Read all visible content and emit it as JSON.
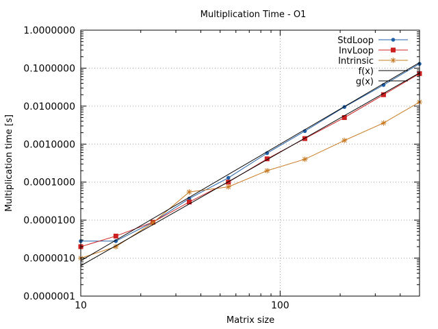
{
  "chart_data": {
    "type": "line",
    "title": "Multiplication Time - O1",
    "xlabel": "Matrix size",
    "ylabel": "Multiplication time [s]",
    "xscale": "log",
    "yscale": "log",
    "xlim": [
      10,
      500
    ],
    "ylim": [
      1e-07,
      1
    ],
    "x_ticks": [
      {
        "value": 10,
        "label": "10"
      },
      {
        "value": 100,
        "label": "100"
      }
    ],
    "y_ticks": [
      {
        "value": 1e-07,
        "label": "0.0000001"
      },
      {
        "value": 1e-06,
        "label": "0.0000010"
      },
      {
        "value": 1e-05,
        "label": "0.0000100"
      },
      {
        "value": 0.0001,
        "label": "0.0001000"
      },
      {
        "value": 0.001,
        "label": "0.0010000"
      },
      {
        "value": 0.01,
        "label": "0.0100000"
      },
      {
        "value": 0.1,
        "label": "0.1000000"
      },
      {
        "value": 1,
        "label": "1.0000000"
      }
    ],
    "grid": true,
    "legend_position": "top-right",
    "series": [
      {
        "name": "StdLoop",
        "color": "#1f5fa8",
        "marker": "dot-plus",
        "x": [
          10,
          15,
          23,
          35,
          55,
          86,
          133,
          210,
          330,
          500
        ],
        "y": [
          2.8e-06,
          2.8e-06,
          8.8e-06,
          3.7e-05,
          0.00013,
          0.00058,
          0.0022,
          0.0095,
          0.036,
          0.13
        ]
      },
      {
        "name": "InvLoop",
        "color": "#cc2020",
        "marker": "square",
        "x": [
          10,
          15,
          23,
          35,
          55,
          86,
          133,
          210,
          330,
          500
        ],
        "y": [
          2e-06,
          3.8e-06,
          8.8e-06,
          3e-05,
          0.0001,
          0.00041,
          0.0014,
          0.005,
          0.02,
          0.072
        ]
      },
      {
        "name": "Intrinsic",
        "color": "#c87820",
        "marker": "star",
        "x": [
          10,
          15,
          23,
          35,
          55,
          86,
          133,
          210,
          330,
          500
        ],
        "y": [
          1e-06,
          2e-06,
          8.5e-06,
          5.5e-05,
          7.5e-05,
          0.0002,
          0.0004,
          0.00125,
          0.0036,
          0.0128
        ]
      },
      {
        "name": "f(x)",
        "color": "#000000",
        "marker": "none",
        "x": [
          10,
          500
        ],
        "y": [
          8.5e-07,
          0.14
        ]
      },
      {
        "name": "g(x)",
        "color": "#000000",
        "marker": "none",
        "x": [
          10,
          500
        ],
        "y": [
          6.3e-07,
          0.075
        ]
      }
    ]
  }
}
